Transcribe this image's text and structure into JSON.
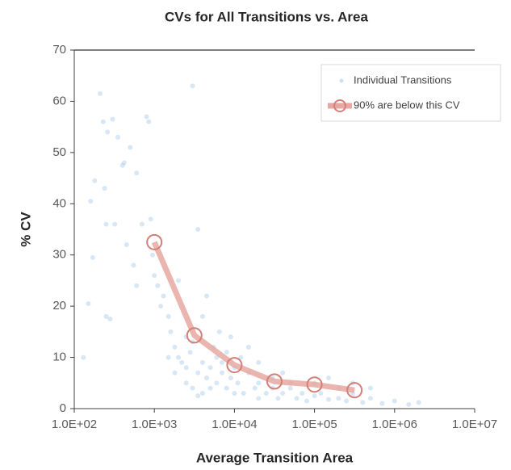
{
  "chart_data": {
    "type": "scatter",
    "title": "CVs for All Transitions vs. Area",
    "x_label": "Average Transition Area",
    "y_label": "% CV",
    "x_log": true,
    "legend": "upper right",
    "xlim": [
      100,
      10000000
    ],
    "ylim": [
      0,
      70
    ],
    "xticks": [
      {
        "value": 100,
        "label": "1.0E+02"
      },
      {
        "value": 1000,
        "label": "1.0E+03"
      },
      {
        "value": 10000,
        "label": "1.0E+04"
      },
      {
        "value": 100000,
        "label": "1.0E+05"
      },
      {
        "value": 1000000,
        "label": "1.0E+06"
      },
      {
        "value": 10000000,
        "label": "1.0E+07"
      }
    ],
    "yticks": [
      0,
      10,
      20,
      30,
      40,
      50,
      60,
      70
    ],
    "series": [
      {
        "name": "Individual Transitions",
        "type": "scatter",
        "color": "#9dc3e6",
        "x": [
          150,
          170,
          160,
          180,
          210,
          230,
          240,
          260,
          250,
          280,
          300,
          320,
          350,
          400,
          420,
          450,
          500,
          550,
          600,
          700,
          800,
          850,
          900,
          950,
          1000,
          1100,
          1200,
          1300,
          1500,
          1600,
          1800,
          2000,
          2200,
          2500,
          2800,
          3000,
          3500,
          4000,
          4500,
          5000,
          6000,
          7000,
          8000,
          9000,
          11000,
          13000,
          15000,
          18000,
          20000,
          25000,
          30000,
          35000,
          40000,
          50000,
          60000,
          70000,
          80000,
          100000,
          120000,
          150000,
          200000,
          250000,
          300000,
          400000,
          500000,
          700000,
          1000000,
          1500000,
          2000000,
          250,
          130,
          600,
          3000,
          4500,
          3500,
          4000,
          5500,
          6500,
          2500,
          2000,
          12000,
          15000,
          9000,
          1800,
          1500,
          2500,
          3000,
          4000,
          6000,
          7000,
          8000,
          10000,
          20000,
          30000,
          40000,
          50000,
          100000,
          200000,
          300000,
          150000,
          500000,
          20000,
          10000,
          5000,
          3500
        ],
        "values": [
          20.5,
          29.5,
          40.5,
          44.5,
          61.5,
          56,
          43,
          54,
          18,
          17.5,
          56.5,
          36,
          53,
          47.5,
          48,
          32,
          51,
          28,
          24,
          36,
          57,
          56,
          37,
          30,
          26,
          24,
          20,
          22,
          18,
          15,
          12,
          10,
          9,
          8,
          11,
          13,
          7,
          9,
          6,
          8,
          5,
          7,
          4,
          6,
          5,
          3,
          7,
          4,
          5,
          3,
          4,
          2,
          3,
          5,
          2,
          3,
          1.5,
          2.5,
          3,
          1.8,
          2,
          1.5,
          2.8,
          1.2,
          2,
          1,
          1.5,
          0.8,
          1.2,
          36,
          10,
          46,
          63,
          22,
          35,
          18,
          12,
          15,
          14,
          25,
          10,
          12,
          14,
          7,
          10,
          5,
          4,
          3,
          10,
          9,
          11,
          8,
          9,
          6,
          7,
          4,
          5,
          4,
          5,
          6,
          4,
          2,
          3,
          4,
          2.5
        ]
      },
      {
        "name": "90% are below this CV",
        "type": "line",
        "color": "#e6a8a0",
        "x": [
          1000,
          3160,
          10000,
          31600,
          100000,
          316000
        ],
        "values": [
          32.5,
          14.3,
          8.5,
          5.3,
          4.7,
          3.6
        ]
      }
    ]
  }
}
